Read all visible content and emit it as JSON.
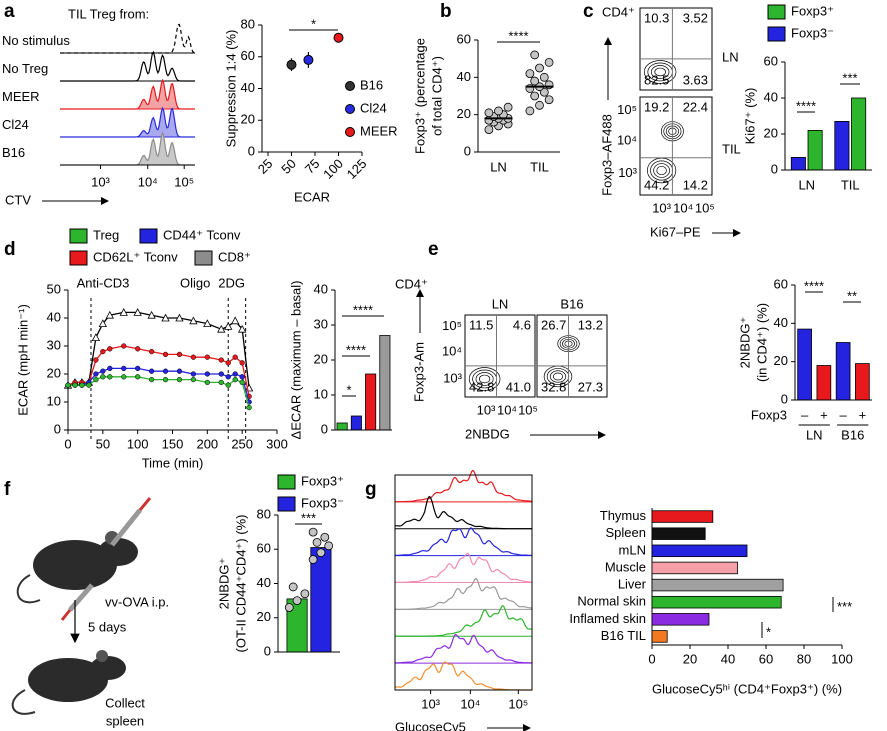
{
  "chart_data": [
    {
      "type": "overlay",
      "panel": "a",
      "title": "TIL Treg from:",
      "xlabel": "CTV",
      "xtick_labels": [
        "10³",
        "10⁴",
        "10⁵"
      ],
      "rows": [
        {
          "label": "No stimulus",
          "color": "#000000",
          "fill": "none",
          "dashed": true
        },
        {
          "label": "No Treg",
          "color": "#000000",
          "fill": "none"
        },
        {
          "label": "MEER",
          "color": "#e8191c",
          "fill": "#f4a3a4"
        },
        {
          "label": "Cl24",
          "color": "#2a2adf",
          "fill": "#a9a9f0"
        },
        {
          "label": "B16",
          "color": "#8c8c8c",
          "fill": "#c8c8c8"
        }
      ]
    },
    {
      "type": "scatter",
      "ylabel": [
        "Suppression 1:4 (%)"
      ],
      "xlabel": "ECAR",
      "xlim": [
        25,
        125
      ],
      "xticks": [
        25,
        50,
        75,
        100,
        125
      ],
      "ylim": [
        0,
        80
      ],
      "yticks": [
        0,
        20,
        40,
        60,
        80
      ],
      "series": [
        {
          "name": "B16",
          "color": "#333333",
          "x": [
            50
          ],
          "values": [
            55
          ],
          "errors": [
            4
          ]
        },
        {
          "name": "Cl24",
          "color": "#2a2adf",
          "x": [
            68
          ],
          "values": [
            58
          ],
          "errors": [
            5
          ]
        },
        {
          "name": "MEER",
          "color": "#e8191c",
          "x": [
            100
          ],
          "values": [
            72
          ],
          "errors": [
            2
          ]
        }
      ],
      "annotations": [
        "*"
      ]
    },
    {
      "type": "dot",
      "panel": "b",
      "ylabel": [
        "Foxp3⁺ (percentage",
        "of total CD4⁺)"
      ],
      "categories": [
        "LN",
        "TIL"
      ],
      "ylim": [
        0,
        60
      ],
      "yticks": [
        0,
        20,
        40,
        60
      ],
      "values": [
        18,
        35
      ],
      "points": [
        [
          12,
          14,
          15,
          16,
          17,
          17,
          18,
          18,
          19,
          20,
          21,
          22,
          24
        ],
        [
          22,
          25,
          28,
          30,
          32,
          34,
          35,
          36,
          38,
          40,
          42,
          45,
          48,
          52
        ]
      ],
      "annotations": [
        "****"
      ]
    },
    {
      "type": "flow",
      "panel": "c",
      "label": "CD4⁺",
      "ylabel": "Foxp3–AF488",
      "xlabel": "Ki67–PE",
      "xtick_labels": [
        "10³",
        "10⁴",
        "10⁵"
      ],
      "ytick_labels": [
        "10³",
        "10⁴",
        "10⁵"
      ],
      "plots": [
        {
          "label": "LN",
          "quadrants": [
            "10.3",
            "3.52",
            "82.5",
            "3.63"
          ]
        },
        {
          "label": "TIL",
          "quadrants": [
            "19.2",
            "22.4",
            "44.2",
            "14.2"
          ]
        }
      ]
    },
    {
      "type": "bar",
      "ylabel": [
        "Ki67⁺ (%)"
      ],
      "categories": [
        "LN",
        "TIL"
      ],
      "ylim": [
        0,
        60
      ],
      "yticks": [
        0,
        20,
        40,
        60
      ],
      "series": [
        {
          "name": "Foxp3⁺",
          "color": "#2db52d",
          "values": [
            22,
            40
          ]
        },
        {
          "name": "Foxp3⁻",
          "color": "#2323e0",
          "values": [
            7,
            27
          ]
        }
      ],
      "annotations": [
        "****",
        "***"
      ]
    },
    {
      "type": "line",
      "panel": "d",
      "ylabel": [
        "ECAR (mpH min⁻¹)"
      ],
      "xlabel": "Time (min)",
      "xlim": [
        0,
        300
      ],
      "xticks": [
        0,
        50,
        100,
        150,
        200,
        250,
        300
      ],
      "ylim": [
        0,
        50
      ],
      "yticks": [
        0,
        10,
        20,
        30,
        40,
        50
      ],
      "x": [
        0,
        10,
        20,
        30,
        40,
        50,
        60,
        80,
        100,
        120,
        140,
        160,
        180,
        200,
        220,
        230,
        240,
        250,
        260
      ],
      "series": [
        {
          "name": "Treg",
          "color": "#2db52d",
          "values": [
            16,
            16,
            16,
            16,
            18,
            19,
            19,
            19,
            19,
            18,
            18,
            18,
            18,
            17,
            17,
            16,
            18,
            17,
            8
          ]
        },
        {
          "name": "CD44⁺ Tconv",
          "color": "#2323e0",
          "values": [
            16,
            16,
            16,
            17,
            20,
            21,
            22,
            22,
            22,
            21,
            21,
            21,
            20,
            20,
            20,
            19,
            20,
            19,
            10
          ]
        },
        {
          "name": "CD62L⁺ Tconv",
          "color": "#e8191c",
          "values": [
            16,
            17,
            17,
            17,
            25,
            28,
            29,
            30,
            29,
            28,
            27,
            27,
            26,
            26,
            25,
            24,
            26,
            24,
            12
          ]
        },
        {
          "name": "CD8⁺",
          "color": "#8c8c8c",
          "values": [
            16,
            17,
            17,
            17,
            33,
            38,
            41,
            42,
            42,
            41,
            40,
            40,
            39,
            38,
            36,
            37,
            39,
            36,
            15
          ]
        }
      ],
      "events": [
        {
          "label": "Anti-CD3",
          "x": 33
        },
        {
          "label": "Oligo",
          "x": 230
        },
        {
          "label": "2DG",
          "x": 255
        }
      ]
    },
    {
      "type": "bar",
      "ylabel": [
        "ΔECAR (maximum – basal)"
      ],
      "values": [
        2,
        4,
        16,
        27
      ],
      "colors": [
        "#2db52d",
        "#2323e0",
        "#e8191c",
        "#9a9a9a"
      ],
      "ylim": [
        0,
        40
      ],
      "yticks": [
        0,
        10,
        20,
        30,
        40
      ],
      "annotations": [
        "*",
        "****",
        "****"
      ]
    },
    {
      "type": "flow",
      "panel": "e",
      "label": "CD4⁺",
      "ylabel": "Foxp3-Am",
      "xlabel": "2NBDG",
      "xtick_labels": [
        "10³",
        "10⁴",
        "10⁵"
      ],
      "ytick_labels": [
        "10³",
        "10⁴",
        "10⁵"
      ],
      "plots": [
        {
          "label": "LN",
          "quadrants": [
            "11.5",
            "4.6",
            "42.8",
            "41.0"
          ]
        },
        {
          "label": "B16",
          "quadrants": [
            "26.7",
            "13.2",
            "32.8",
            "27.3"
          ]
        }
      ]
    },
    {
      "type": "bar",
      "ylabel": [
        "2NBDG⁺",
        "(in CD4⁺) (%)"
      ],
      "xlabel": "Foxp3",
      "categories": [
        "–",
        "+",
        "–",
        "+"
      ],
      "groups": [
        "LN",
        "B16"
      ],
      "values": [
        37,
        18,
        30,
        19
      ],
      "colors": [
        "#2323e0",
        "#e8191c",
        "#2323e0",
        "#e8191c"
      ],
      "ylim": [
        0,
        60
      ],
      "yticks": [
        0,
        20,
        40,
        60
      ],
      "annotations": [
        "****",
        "**"
      ]
    },
    {
      "type": "bar",
      "panel": "f",
      "ylabel": [
        "2NBDG⁺",
        "(OT-II CD44⁺CD4⁺) (%)"
      ],
      "ylim": [
        0,
        80
      ],
      "yticks": [
        0,
        20,
        40,
        60,
        80
      ],
      "series": [
        {
          "name": "Foxp3⁺",
          "color": "#2db52d",
          "values": [
            31
          ],
          "points": [
            [
              26,
              30,
              34,
              38
            ]
          ]
        },
        {
          "name": "Foxp3⁻",
          "color": "#2323e0",
          "values": [
            61
          ],
          "points": [
            [
              54,
              58,
              62,
              64,
              67,
              70
            ]
          ]
        }
      ],
      "annotations": [
        "***"
      ],
      "diagram": [
        "vv-OVA i.p.",
        "5 days",
        "Collect",
        "spleen"
      ]
    },
    {
      "type": "overlay",
      "panel": "g",
      "xlabel": "GlucoseCy5",
      "xtick_labels": [
        "10³",
        "10⁴",
        "10⁵"
      ],
      "rows": [
        {
          "color": "#e8191c",
          "fill": "none"
        },
        {
          "color": "#000000",
          "fill": "none"
        },
        {
          "color": "#2323e0",
          "fill": "none"
        },
        {
          "color": "#f08cb0",
          "fill": "none"
        },
        {
          "color": "#9a9a9a",
          "fill": "none"
        },
        {
          "color": "#2db52d",
          "fill": "none"
        },
        {
          "color": "#8a2be2",
          "fill": "none"
        },
        {
          "color": "#f39030",
          "fill": "none"
        }
      ]
    },
    {
      "type": "hbar",
      "xlabel": "GlucoseCy5ʰⁱ (CD4⁺Foxp3⁺) (%)",
      "categories": [
        "Thymus",
        "Spleen",
        "mLN",
        "Muscle",
        "Liver",
        "Normal skin",
        "Inflamed skin",
        "B16 TIL"
      ],
      "values": [
        32,
        28,
        50,
        45,
        69,
        68,
        30,
        8
      ],
      "colors": [
        "#e8191c",
        "#111111",
        "#2323e0",
        "#f5a0a8",
        "#a0a0a0",
        "#2db52d",
        "#8a2be2",
        "#f37820"
      ],
      "xlim": [
        0,
        100
      ],
      "xticks": [
        0,
        20,
        40,
        60,
        80,
        100
      ],
      "annotations": [
        "***",
        "*"
      ]
    }
  ]
}
